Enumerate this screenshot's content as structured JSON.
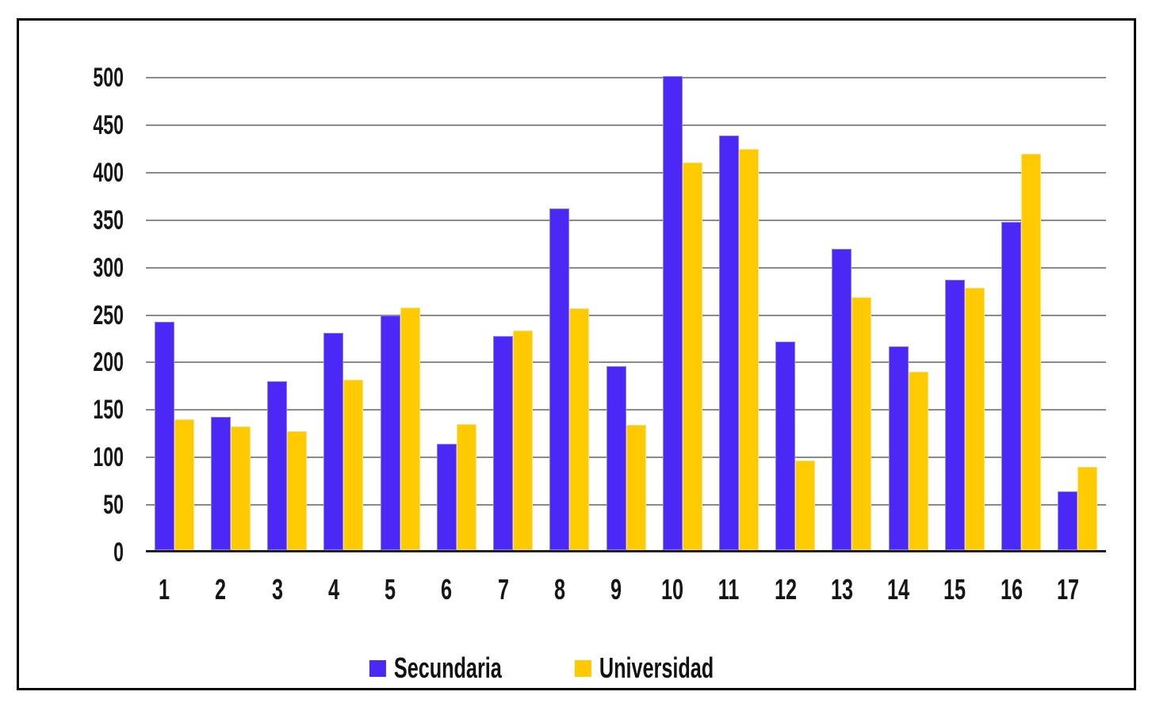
{
  "chart_data": {
    "type": "bar",
    "title": "",
    "xlabel": "",
    "ylabel": "",
    "categories": [
      "1",
      "2",
      "3",
      "4",
      "5",
      "6",
      "7",
      "8",
      "9",
      "10",
      "11",
      "12",
      "13",
      "14",
      "15",
      "16",
      "17"
    ],
    "series": [
      {
        "name": "Secundaria",
        "color": "#4C28F6",
        "edge_color": "#8C7CF7",
        "values": [
          243,
          143,
          180,
          231,
          250,
          114,
          228,
          362,
          196,
          502,
          439,
          222,
          320,
          217,
          287,
          348,
          64
        ]
      },
      {
        "name": "Universidad",
        "color": "#FFCB00",
        "edge_color": "#FFE27D",
        "values": [
          140,
          133,
          128,
          182,
          258,
          135,
          234,
          257,
          134,
          411,
          425,
          97,
          269,
          190,
          279,
          420,
          90
        ]
      }
    ],
    "ylim": [
      0,
      500
    ],
    "yticks": [
      0,
      50,
      100,
      150,
      200,
      250,
      300,
      350,
      400,
      450,
      500
    ],
    "grid": true,
    "gridline_color": "#8a8a8a",
    "axis_line_color": "#212121",
    "frame_color": "#000000",
    "legend_position": "bottom"
  },
  "legend": {
    "items": [
      {
        "label": "Secundaria",
        "color": "#4C28F6"
      },
      {
        "label": "Universidad",
        "color": "#FFCB00"
      }
    ]
  }
}
